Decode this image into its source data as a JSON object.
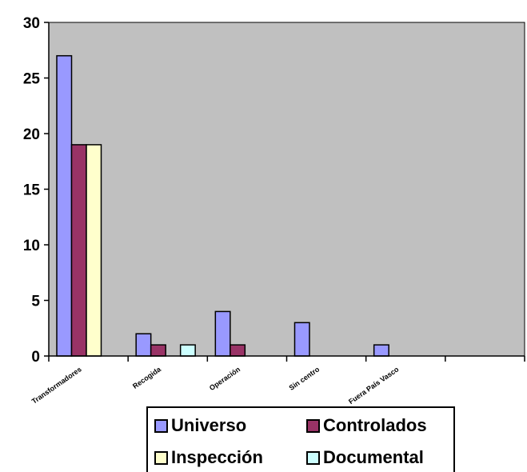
{
  "chart_data": {
    "type": "bar",
    "categories": [
      "Transformadores",
      "Recogida",
      "Operación",
      "Sin centro",
      "Fuera País Vasco",
      ""
    ],
    "series": [
      {
        "name": "Universo",
        "values": [
          27,
          2,
          4,
          3,
          1,
          0
        ],
        "color": "#9999FF"
      },
      {
        "name": "Controlados",
        "values": [
          19,
          1,
          1,
          0,
          0,
          0
        ],
        "color": "#993366"
      },
      {
        "name": "Inspección",
        "values": [
          19,
          0,
          0,
          0,
          0,
          0
        ],
        "color": "#FFFFCC"
      },
      {
        "name": "Documental",
        "values": [
          0,
          1,
          0,
          0,
          0,
          0
        ],
        "color": "#CCFFFF"
      }
    ],
    "ylim": [
      0,
      30
    ],
    "yticks": [
      0,
      5,
      10,
      15,
      20,
      25,
      30
    ],
    "grid": false,
    "plot_background": "#C0C0C0",
    "legend_position": "bottom"
  }
}
